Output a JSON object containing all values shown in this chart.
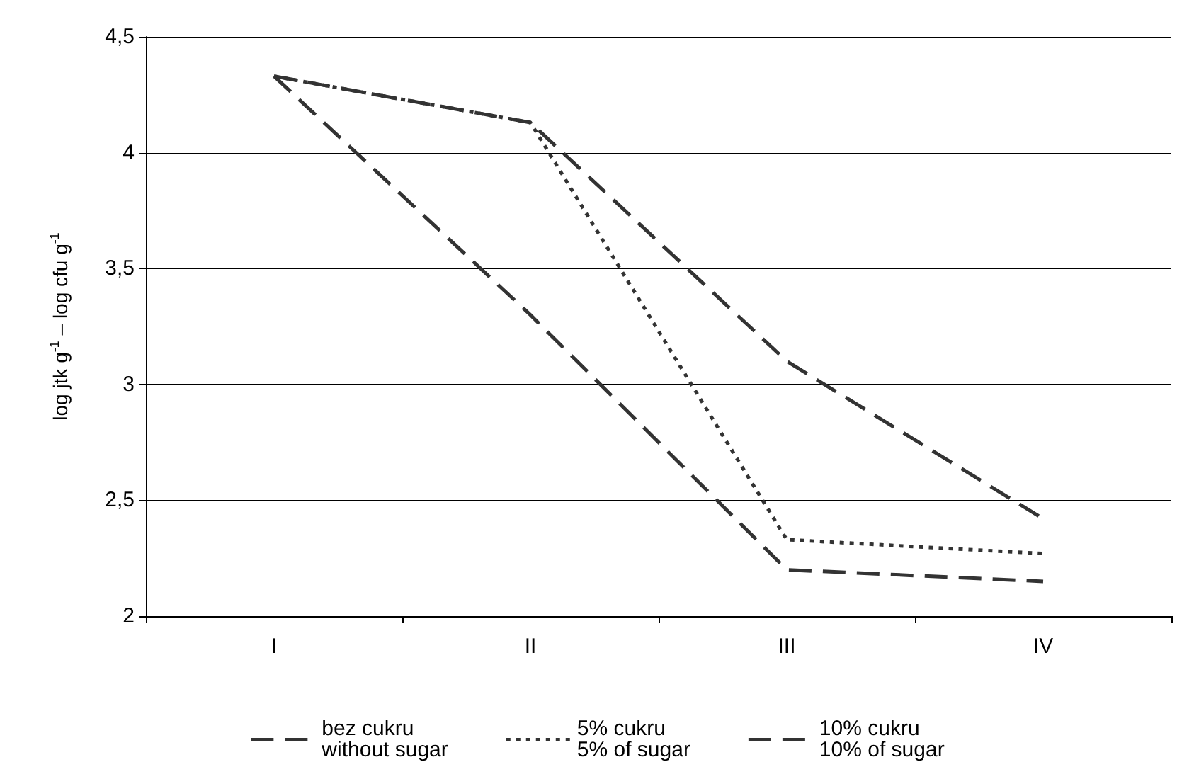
{
  "chart_data": {
    "type": "line",
    "ylabel": "log jtk g$^{-1}$ – log cfu g$^{-1}$",
    "categories": [
      "I",
      "II",
      "III",
      "IV"
    ],
    "series": [
      {
        "name": "bez cukru\nwithout sugar",
        "color": "#333333",
        "line_style": "dashed",
        "values": [
          4.33,
          3.3,
          2.2,
          2.15
        ]
      },
      {
        "name": "5% cukru\n5% of sugar",
        "color": "#333333",
        "line_style": "dotted",
        "values": [
          4.33,
          4.13,
          2.33,
          2.27
        ]
      },
      {
        "name": "10% cukru\n10% of sugar",
        "color": "#333333",
        "line_style": "dashed",
        "values": [
          4.33,
          4.13,
          3.1,
          2.42
        ]
      }
    ],
    "ylim": [
      2,
      4.5
    ],
    "yticks": [
      2,
      {
        "value": 2.5,
        "label": "2,5"
      },
      3,
      {
        "value": 3.5,
        "label": "3,5"
      },
      4,
      {
        "value": 4.5,
        "label": "4,5"
      }
    ],
    "grid": "y",
    "legend": "bottom",
    "marker": "none"
  }
}
